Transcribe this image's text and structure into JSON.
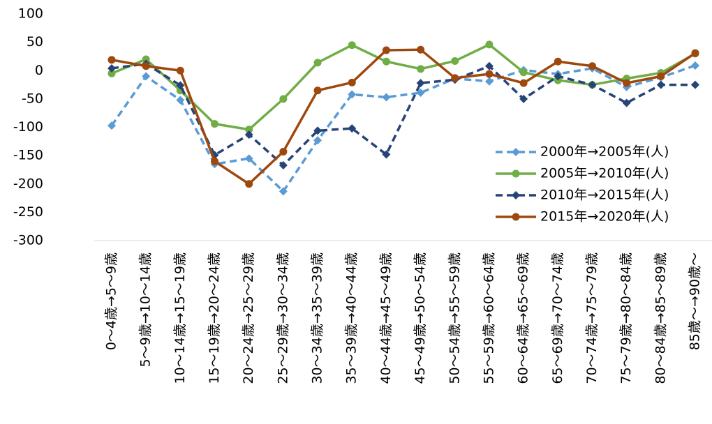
{
  "chart_data": {
    "type": "line",
    "categories": [
      "0～4歳→5～9歳",
      "5～9歳→10～14歳",
      "10～14歳→15～19歳",
      "15～19歳→20～24歳",
      "20～24歳→25～29歳",
      "25～29歳→30～34歳",
      "30～34歳→35～39歳",
      "35～39歳→40～44歳",
      "40～44歳→45～49歳",
      "45～49歳→50～54歳",
      "50～54歳→55～59歳",
      "55～59歳→60～64歳",
      "60～64歳→65～69歳",
      "65～69歳→70～74歳",
      "70～74歳→75～79歳",
      "75～79歳→80～84歳",
      "80～84歳→85～89歳",
      "85歳～→90歳～"
    ],
    "series": [
      {
        "name": "2000年→2005年(人)",
        "color": "#5b9bd5",
        "dash": true,
        "marker": "diamond",
        "values": [
          -97,
          -10,
          -52,
          -165,
          -155,
          -213,
          -123,
          -42,
          -47,
          -39,
          -14,
          -19,
          1,
          -6,
          4,
          -29,
          -12,
          9
        ]
      },
      {
        "name": "2005年→2010年(人)",
        "color": "#70ad47",
        "dash": false,
        "marker": "circle",
        "values": [
          -5,
          20,
          -35,
          -94,
          -104,
          -50,
          14,
          45,
          16,
          3,
          17,
          46,
          -3,
          -17,
          -25,
          -14,
          -4,
          30
        ]
      },
      {
        "name": "2010年→2015年(人)",
        "color": "#264478",
        "dash": true,
        "marker": "diamond",
        "values": [
          4,
          12,
          -26,
          -149,
          -113,
          -167,
          -106,
          -102,
          -148,
          -22,
          -16,
          8,
          -50,
          -10,
          -25,
          -57,
          -25,
          -25
        ]
      },
      {
        "name": "2015年→2020年(人)",
        "color": "#9e480e",
        "dash": false,
        "marker": "circle",
        "values": [
          19,
          8,
          0,
          -160,
          -200,
          -143,
          -35,
          -21,
          36,
          37,
          -13,
          -6,
          -22,
          16,
          8,
          -22,
          -10,
          31
        ]
      }
    ],
    "ylim": [
      -300,
      100
    ],
    "yticks": [
      -300,
      -250,
      -200,
      -150,
      -100,
      -50,
      0,
      50,
      100
    ],
    "grid": false,
    "legend": "right"
  }
}
